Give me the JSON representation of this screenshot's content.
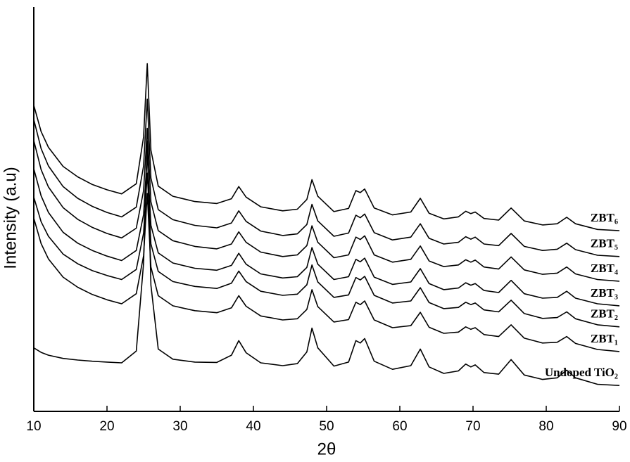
{
  "chart_data": {
    "type": "line",
    "x_label": "2θ",
    "y_label": "Intensity (a.u)",
    "xlim": [
      10,
      90
    ],
    "xticks": [
      10,
      20,
      30,
      40,
      50,
      60,
      70,
      80,
      90
    ],
    "ylim": [
      0,
      100
    ],
    "yticks": [],
    "x": [
      10,
      11,
      12,
      14,
      16,
      18,
      20,
      22,
      24,
      25,
      25.5,
      26,
      27,
      29,
      32,
      35,
      37,
      38,
      39,
      41,
      44,
      46,
      47.3,
      48,
      48.8,
      51,
      53,
      54,
      54.6,
      55.2,
      56.5,
      59,
      61.5,
      62.8,
      64,
      66,
      68,
      69,
      69.7,
      70.3,
      71.5,
      73.5,
      75.2,
      77,
      79.5,
      81.5,
      82.8,
      84,
      87,
      90
    ],
    "series": [
      {
        "name": "ZBT₆",
        "color": "#000000",
        "values": [
          75.7,
          69.2,
          65.3,
          60.6,
          58.0,
          56.1,
          54.8,
          53.8,
          56.3,
          67.9,
          86.0,
          64.6,
          55.7,
          53.2,
          51.9,
          51.4,
          52.6,
          55.6,
          53.0,
          50.6,
          49.6,
          50.0,
          52.4,
          57.3,
          53.2,
          49.4,
          50.2,
          54.6,
          54.1,
          55.0,
          50.3,
          48.6,
          49.3,
          52.7,
          49.0,
          47.6,
          48.1,
          49.5,
          48.9,
          49.3,
          47.7,
          47.3,
          50.3,
          47.1,
          46.1,
          46.4,
          48.0,
          46.4,
          45.0,
          44.7
        ]
      },
      {
        "name": "ZBT₅",
        "color": "#000000",
        "values": [
          72.2,
          65.0,
          60.7,
          55.6,
          52.7,
          50.7,
          49.2,
          48.1,
          50.5,
          60.7,
          77.2,
          57.7,
          49.9,
          47.4,
          46.0,
          45.4,
          46.6,
          49.6,
          47.0,
          44.6,
          43.5,
          43.9,
          46.2,
          51.2,
          47.1,
          43.3,
          44.1,
          48.5,
          47.9,
          48.8,
          44.2,
          42.4,
          43.1,
          46.4,
          42.8,
          41.4,
          41.8,
          43.2,
          42.6,
          43.1,
          41.4,
          41.0,
          44.0,
          40.8,
          39.8,
          40.1,
          41.6,
          40.0,
          38.6,
          38.3
        ]
      },
      {
        "name": "ZBT₄",
        "color": "#000000",
        "values": [
          67.0,
          59.8,
          55.5,
          50.4,
          47.5,
          45.5,
          44.0,
          42.9,
          45.3,
          54.6,
          70.0,
          51.8,
          44.7,
          42.2,
          40.8,
          40.2,
          41.4,
          44.4,
          41.8,
          39.4,
          38.3,
          38.7,
          41.0,
          45.9,
          41.8,
          38.0,
          38.7,
          43.1,
          42.5,
          43.4,
          38.7,
          36.9,
          37.6,
          40.9,
          37.2,
          35.8,
          36.2,
          37.5,
          36.9,
          37.4,
          35.7,
          35.2,
          38.2,
          35.0,
          33.9,
          34.2,
          35.7,
          34.0,
          32.6,
          32.2
        ]
      },
      {
        "name": "ZBT₃",
        "color": "#000000",
        "values": [
          60.0,
          53.3,
          49.2,
          44.3,
          41.6,
          39.8,
          38.4,
          37.3,
          39.8,
          48.7,
          63.5,
          46.0,
          39.2,
          36.7,
          35.4,
          34.9,
          36.1,
          39.1,
          36.4,
          34.0,
          33.0,
          33.3,
          35.6,
          40.5,
          36.4,
          32.6,
          33.3,
          37.6,
          37.0,
          37.9,
          33.2,
          31.4,
          32.0,
          35.3,
          31.6,
          30.1,
          30.5,
          31.8,
          31.2,
          31.6,
          29.9,
          29.4,
          32.4,
          29.1,
          28.0,
          28.2,
          29.7,
          28.0,
          26.6,
          26.1
        ]
      },
      {
        "name": "ZBT₂",
        "color": "#000000",
        "values": [
          53.0,
          46.9,
          43.3,
          38.9,
          36.5,
          34.8,
          33.6,
          32.6,
          35.1,
          44.1,
          58.9,
          41.4,
          34.6,
          32.1,
          30.9,
          30.4,
          31.7,
          34.7,
          32.1,
          29.7,
          28.7,
          29.0,
          31.3,
          36.2,
          32.0,
          28.2,
          28.8,
          33.1,
          32.5,
          33.4,
          28.7,
          26.8,
          27.3,
          30.6,
          26.9,
          25.4,
          25.7,
          27.0,
          26.4,
          26.8,
          25.1,
          24.6,
          27.5,
          24.2,
          23.0,
          23.2,
          24.6,
          22.9,
          21.4,
          20.9
        ]
      },
      {
        "name": "ZBT₁",
        "color": "#000000",
        "values": [
          47.8,
          41.5,
          37.7,
          33.2,
          30.7,
          28.9,
          27.6,
          26.6,
          29.1,
          38.5,
          53.9,
          35.7,
          28.6,
          26.1,
          24.9,
          24.4,
          25.6,
          28.6,
          26.0,
          23.6,
          22.6,
          22.9,
          25.2,
          30.1,
          25.9,
          22.1,
          22.7,
          27.0,
          26.4,
          27.3,
          22.6,
          20.7,
          21.2,
          24.5,
          20.8,
          19.3,
          19.6,
          20.9,
          20.3,
          20.7,
          19.0,
          18.5,
          21.4,
          18.1,
          16.9,
          17.1,
          18.5,
          16.8,
          15.3,
          14.8
        ]
      },
      {
        "name": "Undoped TiO₂",
        "color": "#000000",
        "values": [
          15.7,
          14.6,
          13.9,
          13.1,
          12.7,
          12.4,
          12.2,
          12.0,
          14.9,
          36.7,
          66.9,
          31.2,
          15.4,
          12.9,
          12.2,
          12.1,
          13.9,
          17.5,
          14.5,
          12.0,
          11.3,
          11.8,
          14.7,
          20.6,
          15.7,
          11.2,
          12.2,
          17.5,
          16.9,
          18.0,
          12.4,
          10.4,
          11.3,
          15.4,
          11.0,
          9.4,
          10.0,
          11.7,
          11.0,
          11.5,
          9.6,
          9.2,
          12.8,
          9.0,
          7.9,
          8.3,
          10.2,
          8.3,
          6.7,
          6.4
        ]
      }
    ]
  }
}
